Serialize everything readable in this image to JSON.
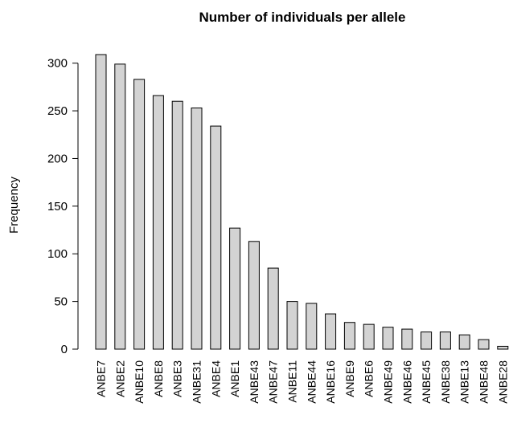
{
  "chart_data": {
    "type": "bar",
    "title": "Number of individuals per allele",
    "xlabel": "",
    "ylabel": "Frequency",
    "categories": [
      "ANBE7",
      "ANBE2",
      "ANBE10",
      "ANBE8",
      "ANBE3",
      "ANBE31",
      "ANBE4",
      "ANBE1",
      "ANBE43",
      "ANBE47",
      "ANBE11",
      "ANBE44",
      "ANBE16",
      "ANBE9",
      "ANBE6",
      "ANBE49",
      "ANBE46",
      "ANBE45",
      "ANBE38",
      "ANBE13",
      "ANBE48",
      "ANBE28"
    ],
    "values": [
      309,
      299,
      283,
      266,
      260,
      253,
      234,
      127,
      113,
      85,
      50,
      48,
      37,
      28,
      26,
      23,
      21,
      18,
      18,
      15,
      10,
      3
    ],
    "yticks": [
      0,
      50,
      100,
      150,
      200,
      250,
      300
    ],
    "ylim": [
      0,
      309
    ],
    "bar_color": "#d3d3d3",
    "grid": false,
    "legend": "none"
  }
}
